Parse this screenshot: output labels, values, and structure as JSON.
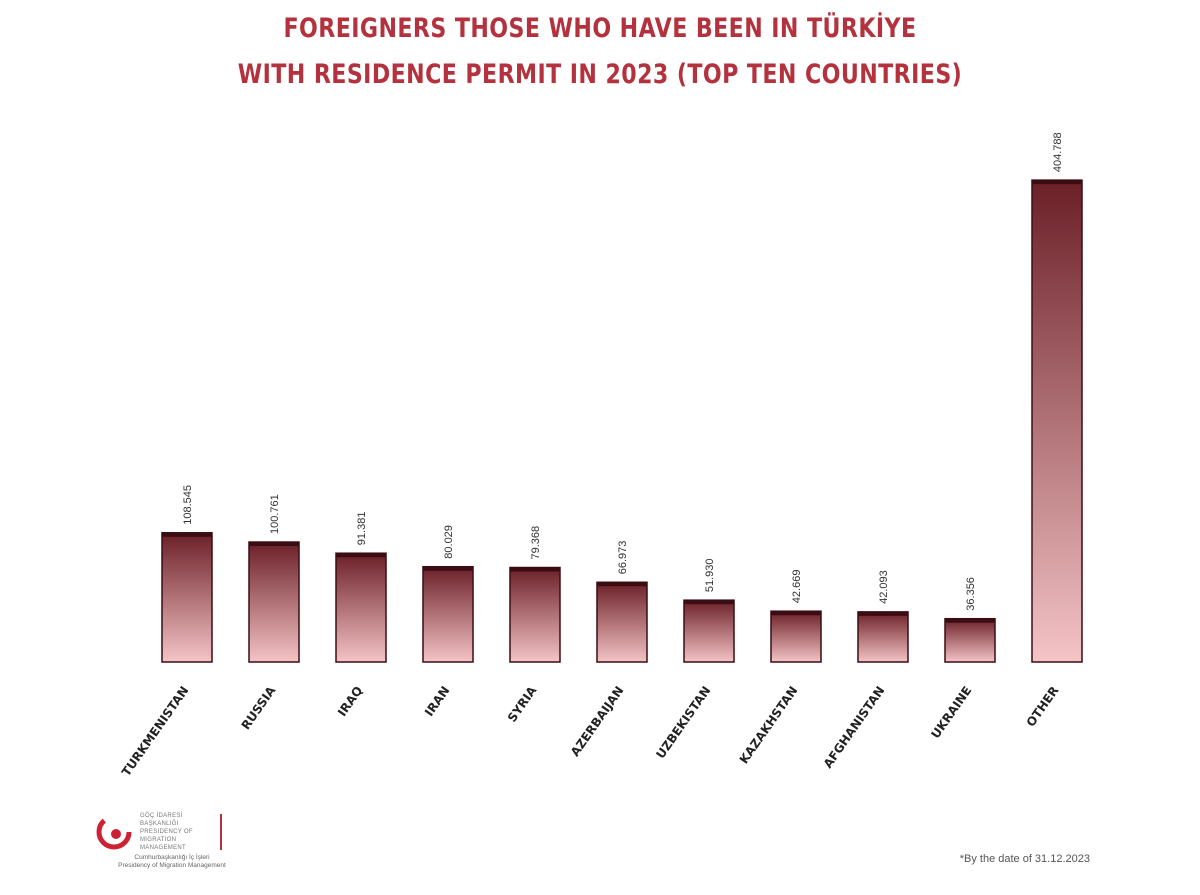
{
  "chart_data": {
    "type": "bar",
    "title_lines": [
      "FOREIGNERS THOSE WHO HAVE BEEN IN TÜRKİYE",
      "WITH RESIDENCE PERMIT IN 2023 (TOP TEN COUNTRIES)"
    ],
    "categories": [
      "TURKMENISTAN",
      "RUSSIA",
      "IRAQ",
      "IRAN",
      "SYRIA",
      "AZERBAIJAN",
      "UZBEKISTAN",
      "KAZAKHSTAN",
      "AFGHANISTAN",
      "UKRAINE",
      "OTHER"
    ],
    "values": [
      108545,
      100761,
      91381,
      80029,
      79368,
      66973,
      51930,
      42669,
      42093,
      36356,
      404788
    ],
    "value_labels": [
      "108.545",
      "100.761",
      "91.381",
      "80.029",
      "79.368",
      "66.973",
      "51.930",
      "42.669",
      "42.093",
      "36.356",
      "404.788"
    ],
    "ylim": [
      0,
      420000
    ],
    "grid": false,
    "colors": {
      "bar_top": "#6b1f27",
      "bar_bottom": "#f4c4c6",
      "bar_edge": "#3a0d12",
      "title": "#b3323d"
    }
  },
  "logo": {
    "text_lines": [
      "GÖÇ İDARESİ",
      "BAŞKANLIĞI",
      "PRESIDENCY OF",
      "MIGRATION",
      "MANAGEMENT"
    ],
    "sub_lines": [
      "Cumhurbaşkanlığı İç İşleri",
      "Presidency of Migration Management"
    ]
  },
  "footnote": "*By the date of 31.12.2023"
}
